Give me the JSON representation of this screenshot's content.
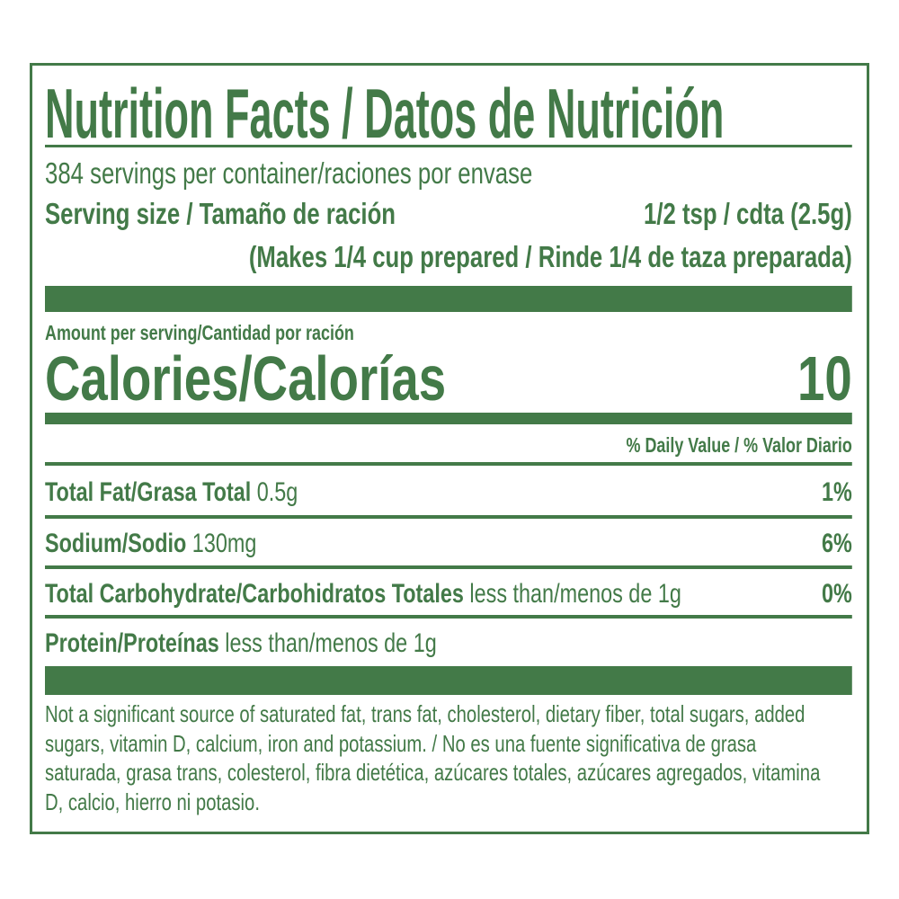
{
  "colors": {
    "label_green": "#437a48"
  },
  "title": "Nutrition Facts / Datos de Nutrición",
  "servings_per_container": "384 servings per container/raciones por envase",
  "serving_size": {
    "label": "Serving size / Tamaño de ración",
    "value": "1/2 tsp / cdta (2.5g)",
    "makes": "(Makes 1/4 cup prepared / Rinde 1/4 de taza preparada)"
  },
  "amount_per_serving": "Amount per serving/Cantidad por ración",
  "calories": {
    "label": "Calories/Calorías",
    "value": "10"
  },
  "daily_value_header": "% Daily Value / % Valor Diario",
  "nutrients": [
    {
      "name": "Total Fat/Grasa Total",
      "amount": "0.5g",
      "dv": "1%"
    },
    {
      "name": "Sodium/Sodio",
      "amount": "130mg",
      "dv": "6%"
    },
    {
      "name": "Total Carbohydrate/Carbohidratos Totales",
      "amount": "less than/menos de 1g",
      "dv": "0%"
    },
    {
      "name": "Protein/Proteínas",
      "amount": "less than/menos de 1g",
      "dv": ""
    }
  ],
  "footnote": "Not a significant source of saturated fat, trans fat, cholesterol, dietary fiber, total sugars, added sugars, vitamin D, calcium, iron and potassium. / No es una fuente significativa de grasa saturada, grasa trans, colesterol, fibra dietética, azúcares totales, azúcares agregados, vitamina D, calcio, hierro ni potasio."
}
